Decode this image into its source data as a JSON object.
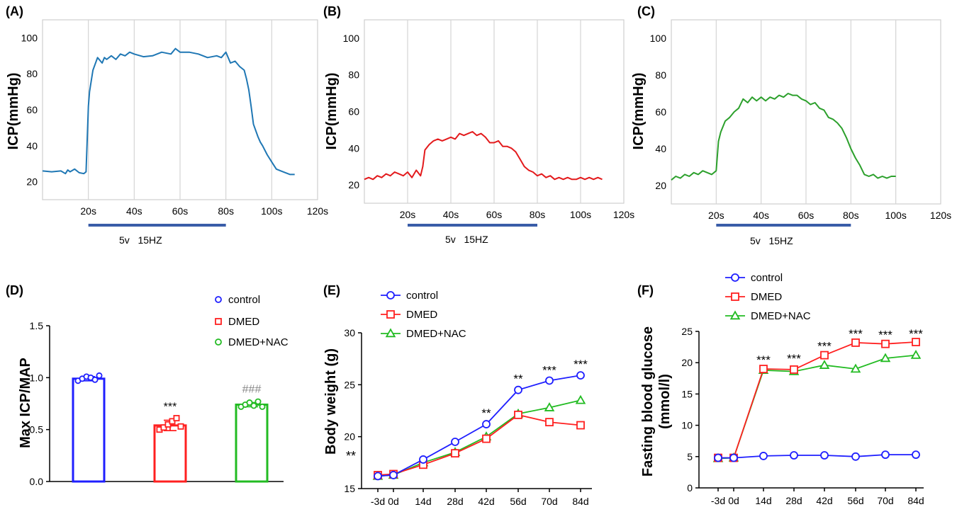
{
  "chart_data": [
    {
      "id": "A",
      "panel_label": "(A)",
      "type": "line",
      "ylabel": "ICP(mmHg)",
      "y_ticks": [
        "20",
        "40",
        "60",
        "80",
        "100"
      ],
      "y_tick_values": [
        20,
        40,
        60,
        80,
        100
      ],
      "ylim": [
        10,
        110
      ],
      "x_ticks": [
        "20s",
        "40s",
        "60s",
        "80s",
        "100s",
        "120s"
      ],
      "x_tick_values": [
        20,
        40,
        60,
        80,
        100,
        120
      ],
      "xlim": [
        0,
        120
      ],
      "stimulus": {
        "start": 20,
        "end": 80,
        "label": "5v   15HZ"
      },
      "grid": true,
      "color": "#1f77b4",
      "series": [
        {
          "x": [
            0,
            4,
            8,
            10,
            11,
            12,
            14,
            16,
            18,
            19,
            20,
            20.5,
            21,
            22,
            24,
            26,
            27,
            28,
            30,
            32,
            34,
            36,
            38,
            40,
            44,
            48,
            52,
            56,
            58,
            60,
            64,
            68,
            72,
            76,
            78,
            80,
            82,
            84,
            86,
            88,
            89,
            90,
            91,
            92,
            94,
            95,
            96,
            98,
            100,
            102,
            104,
            106,
            108,
            110
          ],
          "y": [
            26,
            25.5,
            26,
            24.5,
            26.5,
            25.5,
            27,
            25,
            24.5,
            25.5,
            62,
            70,
            74,
            82,
            89,
            86,
            89,
            88,
            90,
            88,
            91,
            90,
            92,
            91,
            89.5,
            90,
            92,
            91,
            94,
            92,
            92,
            91,
            89,
            90,
            89,
            92,
            86,
            87,
            84,
            82,
            77,
            71,
            62,
            52,
            45,
            42,
            40,
            35,
            31,
            27,
            26,
            25,
            24,
            24
          ]
        }
      ]
    },
    {
      "id": "B",
      "panel_label": "(B)",
      "type": "line",
      "ylabel": "ICP(mmHg)",
      "y_ticks": [
        "20",
        "40",
        "60",
        "80",
        "100"
      ],
      "y_tick_values": [
        20,
        40,
        60,
        80,
        100
      ],
      "ylim": [
        10,
        110
      ],
      "x_ticks": [
        "20s",
        "40s",
        "60s",
        "80s",
        "100s",
        "120s"
      ],
      "x_tick_values": [
        20,
        40,
        60,
        80,
        100,
        120
      ],
      "xlim": [
        0,
        120
      ],
      "stimulus": {
        "start": 20,
        "end": 80,
        "label": "5v   15HZ"
      },
      "grid": true,
      "color": "#e31a1c",
      "series": [
        {
          "x": [
            0,
            2,
            4,
            6,
            8,
            10,
            12,
            14,
            16,
            18,
            20,
            22,
            24,
            26,
            27,
            28,
            30,
            32,
            34,
            36,
            38,
            40,
            42,
            44,
            46,
            48,
            50,
            52,
            54,
            56,
            58,
            60,
            62,
            64,
            66,
            68,
            70,
            72,
            74,
            76,
            78,
            80,
            82,
            84,
            86,
            88,
            90,
            92,
            94,
            96,
            98,
            100,
            102,
            104,
            106,
            108,
            110
          ],
          "y": [
            23,
            24,
            23,
            25,
            24,
            26,
            25,
            27,
            26,
            25,
            27,
            24,
            28,
            25,
            30,
            39,
            42,
            44,
            45,
            44,
            45,
            46,
            45,
            48,
            47,
            48,
            49,
            47,
            48,
            46,
            43,
            43,
            44,
            41,
            41,
            40,
            38,
            34,
            30,
            28,
            27,
            25,
            26,
            24,
            25,
            23,
            24,
            23,
            24,
            23,
            23,
            24,
            23,
            24,
            23,
            24,
            23
          ]
        }
      ]
    },
    {
      "id": "C",
      "panel_label": "(C)",
      "type": "line",
      "ylabel": "ICP(mmHg)",
      "y_ticks": [
        "20",
        "40",
        "60",
        "80",
        "100"
      ],
      "y_tick_values": [
        20,
        40,
        60,
        80,
        100
      ],
      "ylim": [
        10,
        110
      ],
      "x_ticks": [
        "20s",
        "40s",
        "60s",
        "80s",
        "100s",
        "120s"
      ],
      "x_tick_values": [
        20,
        40,
        60,
        80,
        100,
        120
      ],
      "xlim": [
        0,
        120
      ],
      "stimulus": {
        "start": 20,
        "end": 80,
        "label": "5v   15HZ"
      },
      "grid": true,
      "color": "#2ca02c",
      "series": [
        {
          "x": [
            0,
            2,
            4,
            6,
            8,
            10,
            12,
            14,
            16,
            18,
            20,
            21,
            22,
            24,
            26,
            28,
            30,
            32,
            34,
            36,
            38,
            40,
            42,
            44,
            46,
            48,
            50,
            52,
            54,
            56,
            58,
            60,
            62,
            64,
            66,
            68,
            70,
            72,
            74,
            76,
            78,
            80,
            82,
            84,
            86,
            88,
            90,
            92,
            94,
            96,
            98,
            100
          ],
          "y": [
            23,
            25,
            24,
            26,
            25,
            27,
            26,
            28,
            27,
            26,
            28,
            44,
            49,
            55,
            57,
            60,
            62,
            67,
            65,
            68,
            66,
            68,
            66,
            68,
            67,
            69,
            68,
            70,
            69,
            69,
            67,
            66,
            64,
            65,
            62,
            61,
            57,
            56,
            54,
            51,
            46,
            40,
            35,
            31,
            26,
            25,
            26,
            24,
            25,
            24,
            25,
            25
          ]
        }
      ]
    },
    {
      "id": "D",
      "panel_label": "(D)",
      "type": "bar",
      "ylabel": "Max ICP/MAP",
      "y_ticks": [
        "0.0",
        "0.5",
        "1.0",
        "1.5"
      ],
      "y_tick_values": [
        0,
        0.5,
        1.0,
        1.5
      ],
      "ylim": [
        0,
        1.5
      ],
      "categories": [
        "control",
        "DMED",
        "DMED+NAC"
      ],
      "series": [
        {
          "name": "control",
          "color": "#1f1fff",
          "marker": "circle",
          "value": 0.99,
          "error": 0.02,
          "points": [
            0.97,
            0.99,
            1.01,
            1.0,
            0.98,
            1.02
          ],
          "annotation": ""
        },
        {
          "name": "DMED",
          "color": "#ff2020",
          "marker": "square",
          "value": 0.54,
          "error": 0.05,
          "points": [
            0.5,
            0.52,
            0.55,
            0.58,
            0.61,
            0.53
          ],
          "annotation": "***"
        },
        {
          "name": "DMED+NAC",
          "color": "#22bb22",
          "marker": "circle",
          "value": 0.74,
          "error": 0.02,
          "points": [
            0.72,
            0.74,
            0.76,
            0.73,
            0.77,
            0.72
          ],
          "annotation": "###"
        }
      ],
      "legend": {
        "position": "top-right"
      }
    },
    {
      "id": "E",
      "panel_label": "(E)",
      "type": "line",
      "ylabel": "Body weight (g)",
      "x_ticks": [
        "-3d",
        "0d",
        "14d",
        "28d",
        "42d",
        "56d",
        "70d",
        "84d"
      ],
      "y_ticks": [
        "15",
        "20",
        "25",
        "30"
      ],
      "y_tick_values": [
        15,
        20,
        25,
        30
      ],
      "ylim": [
        15,
        30
      ],
      "series": [
        {
          "name": "control",
          "color": "#1f1fff",
          "marker": "circle",
          "values": [
            16.2,
            16.3,
            17.8,
            19.5,
            21.2,
            24.5,
            25.4,
            25.9
          ]
        },
        {
          "name": "DMED",
          "color": "#ff2020",
          "marker": "square",
          "values": [
            16.3,
            16.4,
            17.3,
            18.4,
            19.8,
            22.1,
            21.4,
            21.1
          ]
        },
        {
          "name": "DMED+NAC",
          "color": "#22bb22",
          "marker": "triangle",
          "values": [
            16.2,
            16.3,
            17.5,
            18.5,
            20.0,
            22.2,
            22.8,
            23.5
          ]
        }
      ],
      "annotations": [
        {
          "index": 4,
          "y": 21.9,
          "text": "**"
        },
        {
          "index": 5,
          "y": 25.2,
          "text": "**"
        },
        {
          "index": 6,
          "y": 26.0,
          "text": "***"
        },
        {
          "index": 7,
          "y": 26.6,
          "text": "***"
        }
      ],
      "side_annotation": "**",
      "legend": {
        "position": "top-left"
      }
    },
    {
      "id": "F",
      "panel_label": "(F)",
      "type": "line",
      "ylabel": "Fasting blood glucose",
      "ylabel2": "(mmol/l)",
      "x_ticks": [
        "-3d",
        "0d",
        "14d",
        "28d",
        "42d",
        "56d",
        "70d",
        "84d"
      ],
      "y_ticks": [
        "0",
        "5",
        "10",
        "15",
        "20",
        "25"
      ],
      "y_tick_values": [
        0,
        5,
        10,
        15,
        20,
        25
      ],
      "ylim": [
        0,
        25
      ],
      "series": [
        {
          "name": "control",
          "color": "#1f1fff",
          "marker": "circle",
          "values": [
            4.8,
            4.8,
            5.1,
            5.2,
            5.2,
            5.0,
            5.3,
            5.3
          ]
        },
        {
          "name": "DMED",
          "color": "#ff2020",
          "marker": "square",
          "values": [
            4.8,
            4.8,
            19.0,
            18.9,
            21.2,
            23.2,
            23.0,
            23.3
          ]
        },
        {
          "name": "DMED+NAC",
          "color": "#22bb22",
          "marker": "triangle",
          "values": [
            4.7,
            4.8,
            18.8,
            18.6,
            19.6,
            19.0,
            20.7,
            21.2
          ]
        }
      ],
      "annotations": [
        {
          "index": 2,
          "y": 19.8,
          "text": "***"
        },
        {
          "index": 3,
          "y": 20.0,
          "text": "***"
        },
        {
          "index": 4,
          "y": 22.0,
          "text": "***"
        },
        {
          "index": 5,
          "y": 24.0,
          "text": "***"
        },
        {
          "index": 6,
          "y": 23.8,
          "text": "***"
        },
        {
          "index": 7,
          "y": 24.0,
          "text": "***"
        }
      ],
      "legend": {
        "position": "top-left"
      }
    }
  ]
}
